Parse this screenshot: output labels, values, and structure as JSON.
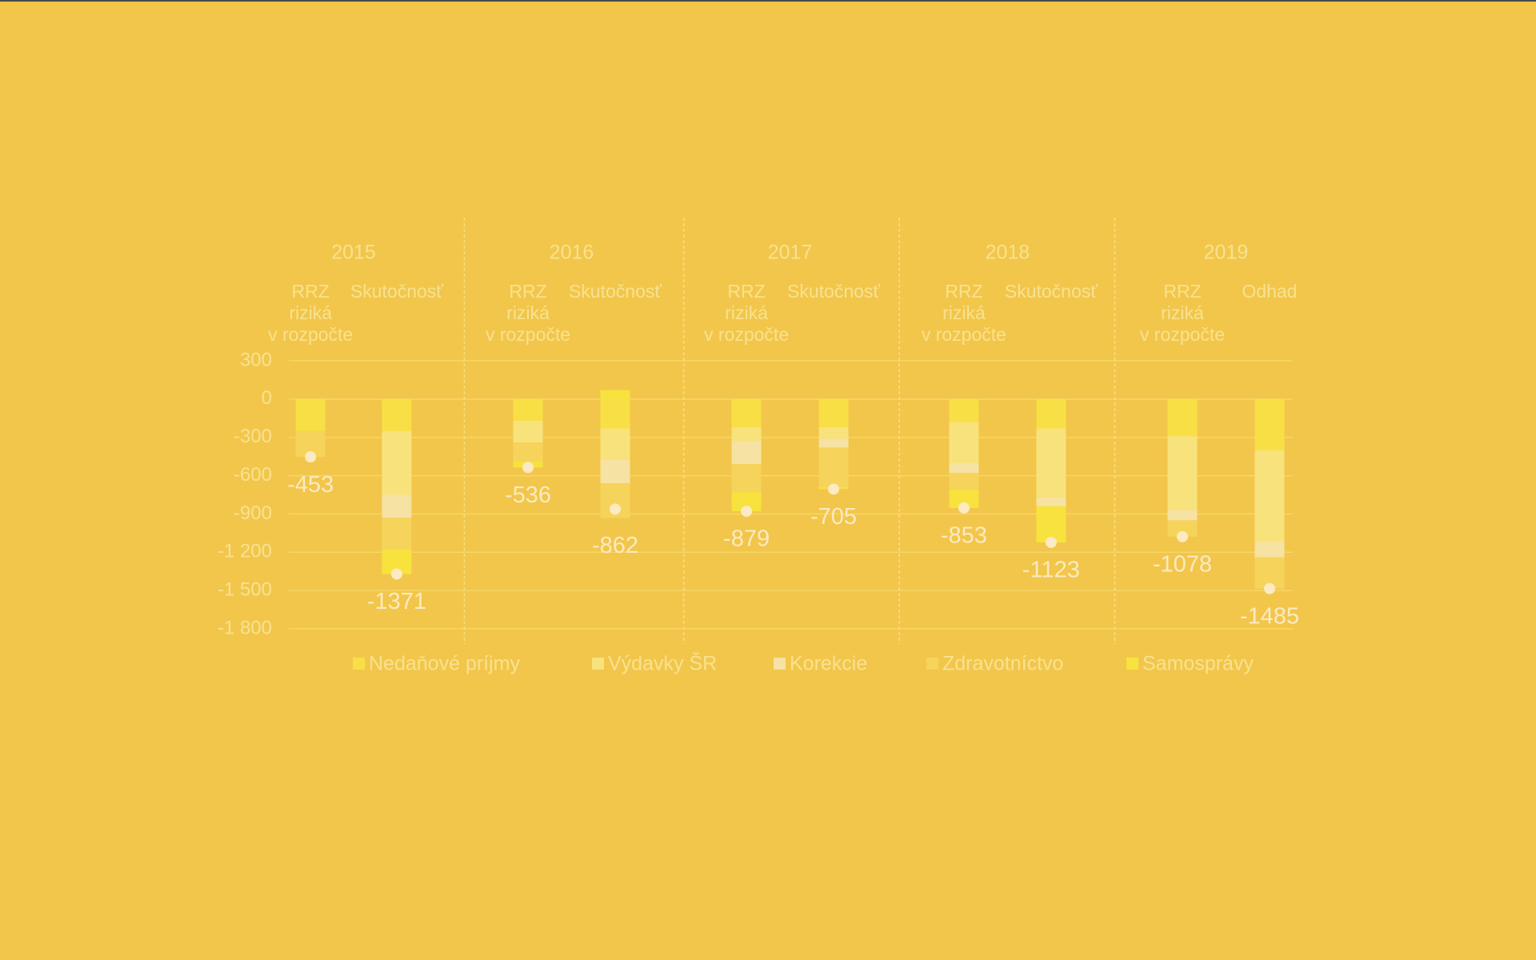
{
  "chart_data": {
    "type": "stacked-bar",
    "groups": [
      "2015",
      "2016",
      "2017",
      "2018",
      "2019"
    ],
    "categories": [
      [
        "RRZ",
        "riziká",
        "v rozpočte"
      ],
      [
        "Skutočnosť"
      ],
      [
        "RRZ",
        "riziká",
        "v rozpočte"
      ],
      [
        "Skutočnosť"
      ],
      [
        "RRZ",
        "riziká",
        "v rozpočte"
      ],
      [
        "Skutočnosť"
      ],
      [
        "RRZ",
        "riziká",
        "v rozpočte"
      ],
      [
        "Skutočnosť"
      ],
      [
        "RRZ",
        "riziká",
        "v rozpočte"
      ],
      [
        "Odhad"
      ]
    ],
    "series": [
      {
        "name": "Nedaňové príjmy",
        "color": "#f8df45",
        "values": [
          -250,
          -250,
          -170,
          -230,
          -220,
          -220,
          -180,
          -230,
          -290,
          -400
        ]
      },
      {
        "name": "Výdavky ŠR",
        "color": "#f8e27c",
        "values": [
          0,
          -500,
          -170,
          -240,
          -110,
          -90,
          -320,
          -540,
          -580,
          -720
        ]
      },
      {
        "name": "Korekcie",
        "color": "#f6e2a2",
        "values": [
          0,
          -180,
          0,
          -190,
          -180,
          -70,
          -80,
          -70,
          -80,
          -120
        ]
      },
      {
        "name": "Zdravotníctvo",
        "color": "#f6d35a",
        "values": [
          -203,
          -250,
          -150,
          -272,
          -220,
          -310,
          -130,
          0,
          -128,
          -245
        ]
      },
      {
        "name": "Samosprávy",
        "color": "#f8e23e",
        "values": [
          0,
          -191,
          -46,
          70,
          -149,
          -15,
          -143,
          -283,
          0,
          0
        ]
      }
    ],
    "totals": [
      -453,
      -1371,
      -536,
      -862,
      -879,
      -705,
      -853,
      -1123,
      -1078,
      -1485
    ],
    "ylim": [
      300,
      -1800
    ],
    "yticks": [
      300,
      0,
      -300,
      -600,
      -900,
      {
        "value": -1200,
        "label": "-1 200"
      },
      {
        "value": -1500,
        "label": "-1 500"
      },
      {
        "value": -1800,
        "label": "-1 800"
      }
    ],
    "grid": true
  }
}
